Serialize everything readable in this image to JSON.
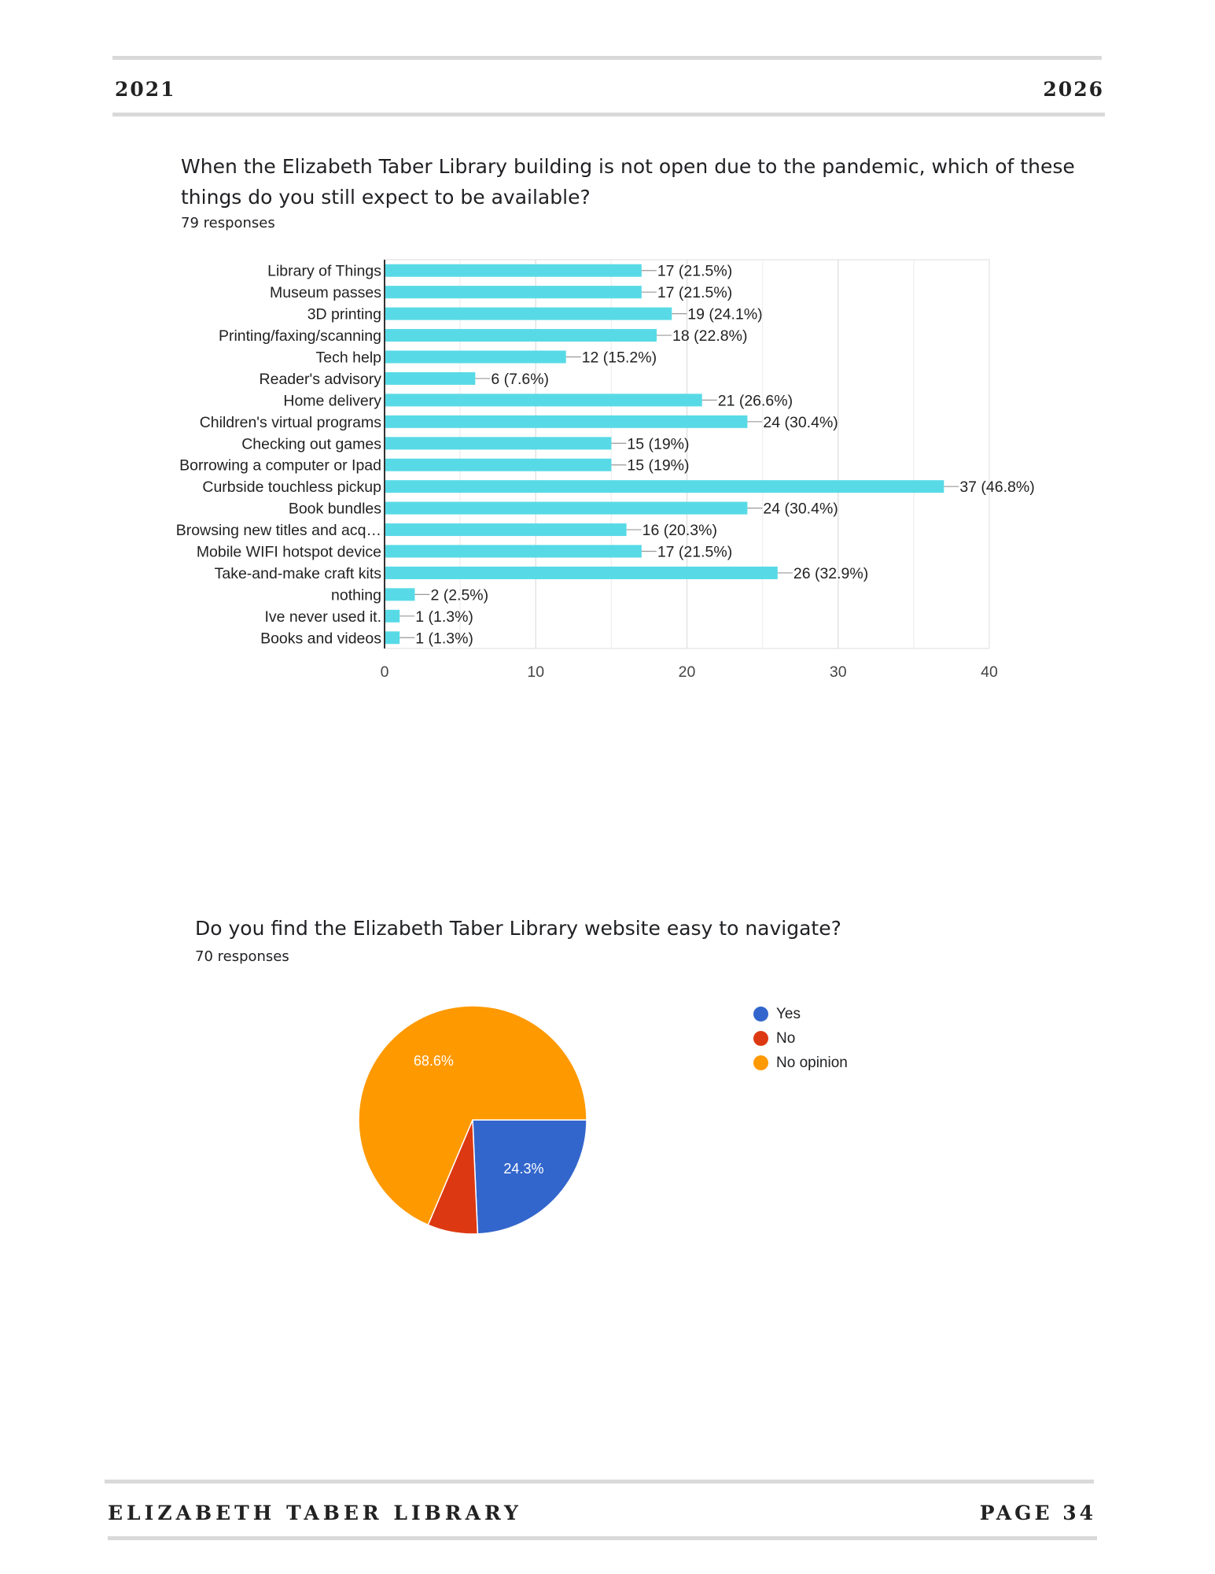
{
  "header": {
    "left": "2021",
    "right": "2026"
  },
  "footer": {
    "left": "ELIZABETH TABER LIBRARY",
    "right": "PAGE 34"
  },
  "question1": {
    "title": "When the Elizabeth Taber Library building is not open due to the pandemic, which of these things do you still expect to be available?",
    "responses": "79 responses"
  },
  "question2": {
    "title": "Do you find the Elizabeth Taber Library website easy to navigate?",
    "responses": "70 responses"
  },
  "chart_data": [
    {
      "type": "bar",
      "orientation": "horizontal",
      "categories": [
        "Library of Things",
        "Museum passes",
        "3D printing",
        "Printing/faxing/scanning",
        "Tech help",
        "Reader's advisory",
        "Home delivery",
        "Children's virtual programs",
        "Checking out games",
        "Borrowing a computer or Ipad",
        "Curbside touchless pickup",
        "Book bundles",
        "Browsing new titles and acq…",
        "Mobile WIFI hotspot device",
        "Take-and-make craft kits",
        "nothing",
        "Ive never used it.",
        "Books and videos"
      ],
      "values": [
        17,
        17,
        19,
        18,
        12,
        6,
        21,
        24,
        15,
        15,
        37,
        24,
        16,
        17,
        26,
        2,
        1,
        1
      ],
      "data_labels": [
        "17 (21.5%)",
        "17 (21.5%)",
        "19 (24.1%)",
        "18 (22.8%)",
        "12 (15.2%)",
        "6 (7.6%)",
        "21 (26.6%)",
        "24 (30.4%)",
        "15 (19%)",
        "15 (19%)",
        "37 (46.8%)",
        "24 (30.4%)",
        "16 (20.3%)",
        "17 (21.5%)",
        "26 (32.9%)",
        "2 (2.5%)",
        "1 (1.3%)",
        "1 (1.3%)"
      ],
      "xlim": [
        0,
        40
      ],
      "xticks": [
        0,
        10,
        20,
        30,
        40
      ],
      "grid": true,
      "color": "#57dae6"
    },
    {
      "type": "pie",
      "labels": [
        "Yes",
        "No",
        "No opinion"
      ],
      "values": [
        24.3,
        7.1,
        68.6
      ],
      "slice_labels": [
        "24.3%",
        "",
        "68.6%"
      ],
      "colors": [
        "#3366cc",
        "#dc3912",
        "#ff9900"
      ],
      "legend": "right"
    }
  ]
}
